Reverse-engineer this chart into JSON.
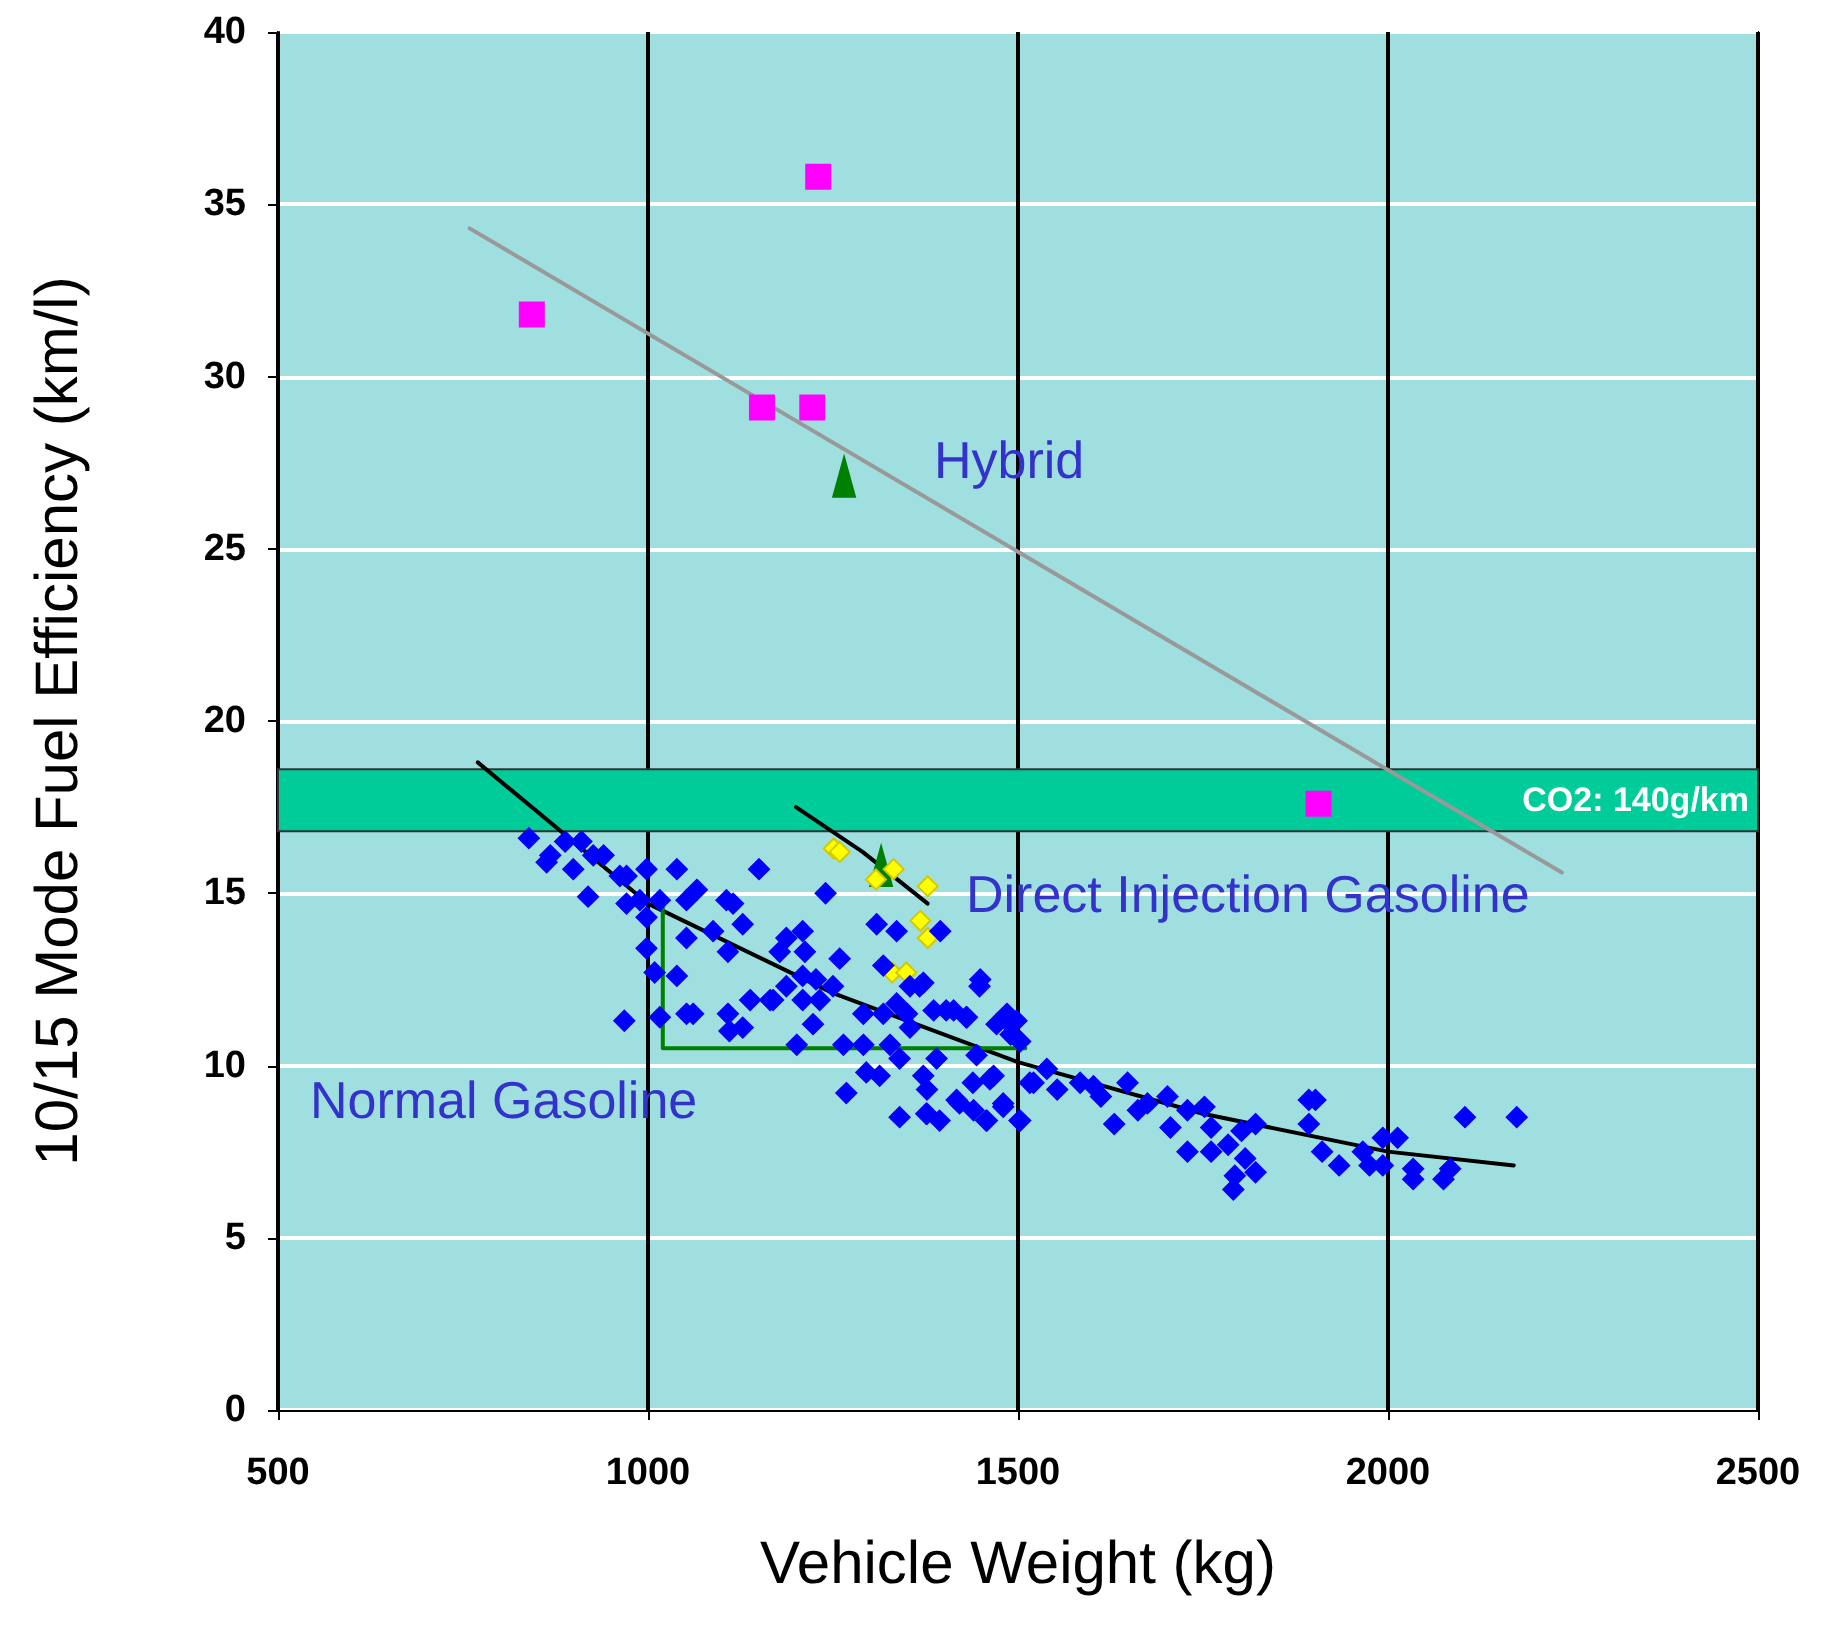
{
  "chart_data": {
    "type": "scatter",
    "xlabel": "Vehicle Weight (kg)",
    "ylabel": "10/15 Mode Fuel Efficiency (km/l)",
    "xlim": [
      500,
      2500
    ],
    "xticks": [
      500,
      1000,
      1500,
      2000,
      2500
    ],
    "ylim": [
      0,
      40
    ],
    "yticks": [
      0,
      5,
      10,
      15,
      20,
      25,
      30,
      35,
      40
    ],
    "grid": true,
    "legend": false,
    "bands": [
      {
        "axis": "y",
        "from": 16.8,
        "to": 18.6,
        "label": "CO2: 140g/km",
        "color": "#00cc99"
      }
    ],
    "series": [
      {
        "name": "Normal Gasoline",
        "color": "#0000ff",
        "marker": "diamond",
        "x": [
          839,
          863,
          868,
          888,
          910,
          899,
          926,
          940,
          919,
          962,
          971,
          971,
          989,
          998,
          1016,
          998,
          1039,
          1052,
          1066,
          1106,
          1115,
          1128,
          1088,
          1052,
          998,
          1009,
          1039,
          968,
          1016,
          1052,
          1061,
          1108,
          1110,
          1128,
          1108,
          1150,
          1187,
          1209,
          1212,
          1178,
          1259,
          1209,
          1227,
          1250,
          1187,
          1138,
          1165,
          1169,
          1209,
          1232,
          1223,
          1201,
          1240,
          1309,
          1336,
          1395,
          1318,
          1354,
          1372,
          1336,
          1318,
          1350,
          1386,
          1413,
          1431,
          1291,
          1264,
          1291,
          1327,
          1354,
          1295,
          1313,
          1340,
          1372,
          1377,
          1390,
          1268,
          1340,
          1377,
          1417,
          1440,
          1458,
          1480,
          1502,
          1449,
          1485,
          1490,
          1444,
          1467,
          1516,
          1498,
          1485,
          1503,
          1521,
          1503,
          1539,
          1553,
          1584,
          1602,
          1612,
          1630,
          1648,
          1662,
          1675,
          1702,
          1706,
          1729,
          1752,
          1761,
          1729,
          1761,
          1784,
          1807,
          1793,
          1791,
          1821,
          1821,
          1802,
          1893,
          1902,
          1893,
          1911,
          1934,
          1966,
          1975,
          1993,
          1993,
          2013,
          2034,
          2034,
          2075,
          2084,
          2104,
          2174,
          1448,
          1367,
          1376,
          1394,
          1457,
          1480,
          1421,
          1403,
          1430,
          1471,
          1439,
          1462
        ],
        "values": [
          16.6,
          15.9,
          16.1,
          16.5,
          16.5,
          15.7,
          16.1,
          16.1,
          14.9,
          15.5,
          15.5,
          14.7,
          14.8,
          15.7,
          14.8,
          14.3,
          15.7,
          14.8,
          15.1,
          14.8,
          14.7,
          14.1,
          13.9,
          13.7,
          13.4,
          12.7,
          12.6,
          11.3,
          11.4,
          11.5,
          11.5,
          11.5,
          11.0,
          11.1,
          13.3,
          15.7,
          13.7,
          13.9,
          13.3,
          13.3,
          13.1,
          12.6,
          12.5,
          12.3,
          12.3,
          11.9,
          11.9,
          11.9,
          11.9,
          11.9,
          11.2,
          10.6,
          15.0,
          14.1,
          13.9,
          13.9,
          12.9,
          12.3,
          12.4,
          11.8,
          11.5,
          11.5,
          11.6,
          11.6,
          11.4,
          11.5,
          10.6,
          10.6,
          10.6,
          11.1,
          9.8,
          9.7,
          10.2,
          9.7,
          9.3,
          10.2,
          9.2,
          8.5,
          8.6,
          9.0,
          8.7,
          8.4,
          8.9,
          8.4,
          12.5,
          11.5,
          10.9,
          10.3,
          9.7,
          9.5,
          11.3,
          11.3,
          10.7,
          9.5,
          8.4,
          9.9,
          9.3,
          9.5,
          9.4,
          9.1,
          8.3,
          9.5,
          8.7,
          8.9,
          9.1,
          8.2,
          8.7,
          8.8,
          8.2,
          7.5,
          7.5,
          7.7,
          7.3,
          6.8,
          6.4,
          6.9,
          8.3,
          8.1,
          9.0,
          9.0,
          8.3,
          7.5,
          7.1,
          7.5,
          7.1,
          7.1,
          7.9,
          7.9,
          7.0,
          6.7,
          6.7,
          7.0,
          8.5,
          8.5,
          12.3,
          12.3,
          8.6,
          8.4,
          8.4,
          8.8,
          8.9,
          11.6,
          11.4,
          11.2,
          9.5,
          9.6
        ]
      },
      {
        "name": "Direct Injection Gasoline",
        "color": "#ffff00",
        "marker": "diamond",
        "x": [
          1251,
          1259,
          1308,
          1332,
          1378,
          1368,
          1378,
          1330,
          1349
        ],
        "values": [
          16.3,
          16.2,
          15.4,
          15.7,
          15.2,
          14.2,
          13.7,
          12.7,
          12.7
        ]
      },
      {
        "name": "Hybrid",
        "color": "#ff00ff",
        "marker": "square",
        "x": [
          843,
          1154,
          1222,
          1230,
          1906
        ],
        "values": [
          31.8,
          29.1,
          29.1,
          35.8,
          17.6
        ]
      },
      {
        "color": "#008000",
        "marker": "triangle",
        "x": [
          1265,
          1315
        ],
        "values": [
          27.1,
          15.8
        ]
      },
      {
        "type": "line",
        "color": "#000000",
        "marker": "none",
        "line_style": "solid",
        "x": [
          770,
          1000,
          1250,
          1500,
          1750,
          2000,
          2170
        ],
        "values": [
          18.8,
          14.7,
          12.1,
          10.1,
          8.6,
          7.5,
          7.1
        ]
      },
      {
        "type": "line",
        "color": "#000000",
        "marker": "none",
        "line_style": "solid",
        "x": [
          1200,
          1290,
          1378
        ],
        "values": [
          17.5,
          16.2,
          14.7
        ]
      },
      {
        "type": "line",
        "color": "#999999",
        "marker": "none",
        "line_style": "solid",
        "x": [
          759,
          2235
        ],
        "values": [
          34.3,
          15.6
        ]
      },
      {
        "type": "line",
        "color": "#008000",
        "marker": "none",
        "line_style": "solid",
        "x": [
          1020,
          1020,
          1510
        ],
        "values": [
          14.8,
          10.5,
          10.5
        ]
      }
    ]
  }
}
